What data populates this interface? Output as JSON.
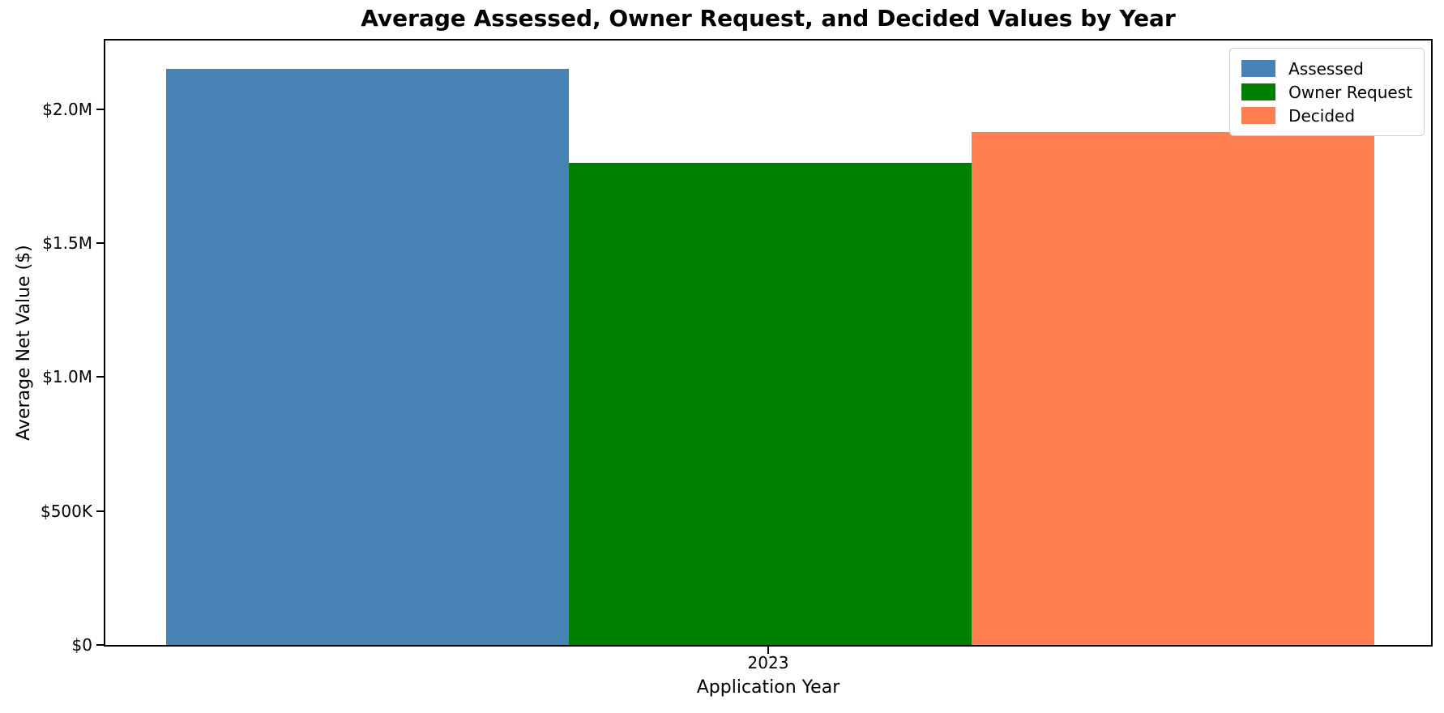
{
  "chart_data": {
    "type": "bar",
    "title": "Average Assessed, Owner Request, and Decided Values by Year",
    "xlabel": "Application Year",
    "ylabel": "Average Net Value ($)",
    "categories": [
      "2023"
    ],
    "series": [
      {
        "name": "Assessed",
        "color": "#4682B4",
        "values": [
          2150000
        ]
      },
      {
        "name": "Owner Request",
        "color": "#008000",
        "values": [
          1800000
        ]
      },
      {
        "name": "Decided",
        "color": "#FF7F50",
        "values": [
          1915000
        ]
      }
    ],
    "ylim": [
      0,
      2262000
    ],
    "yticks": [
      {
        "value": 0,
        "label": "$0"
      },
      {
        "value": 500000,
        "label": "$500K"
      },
      {
        "value": 1000000,
        "label": "$1.0M"
      },
      {
        "value": 1500000,
        "label": "$1.5M"
      },
      {
        "value": 2000000,
        "label": "$2.0M"
      }
    ],
    "legend_position": "upper right",
    "grid": false,
    "text_color": "#000000",
    "background_color": "#ffffff"
  }
}
